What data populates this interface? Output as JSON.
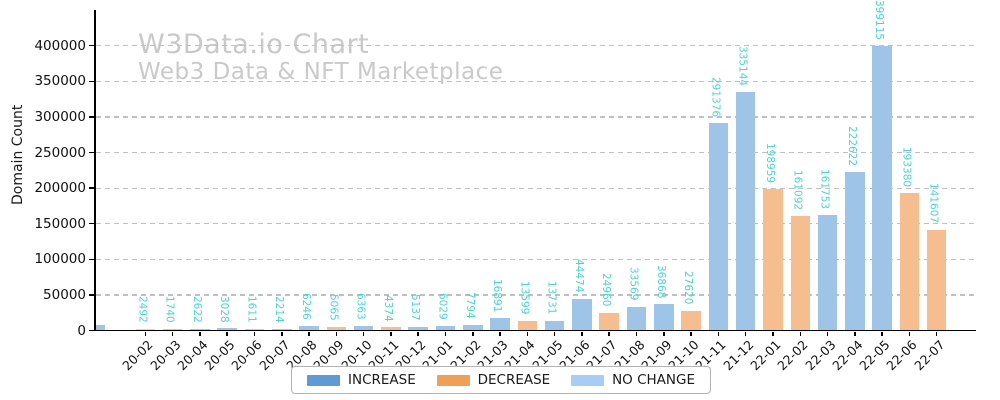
{
  "chart_data": {
    "type": "bar",
    "title": "W3Data.io Chart",
    "subtitle": "Web3 Data & NFT Marketplace",
    "xlabel": "",
    "ylabel": "Domain Count",
    "ylim": [
      0,
      430000
    ],
    "yticks": [
      0,
      50000,
      100000,
      150000,
      200000,
      250000,
      300000,
      350000,
      400000
    ],
    "grid": "horizontal-dashed",
    "legend_position": "bottom-center",
    "value_label_rotation": "vertical",
    "bars": [
      {
        "month": "20-02",
        "value": 2492,
        "status": "no_change"
      },
      {
        "month": "20-03",
        "value": 1740,
        "status": "decrease"
      },
      {
        "month": "20-04",
        "value": 2622,
        "status": "increase"
      },
      {
        "month": "20-05",
        "value": 3028,
        "status": "increase"
      },
      {
        "month": "20-06",
        "value": 1611,
        "status": "decrease"
      },
      {
        "month": "20-07",
        "value": 2214,
        "status": "increase"
      },
      {
        "month": "20-08",
        "value": 6246,
        "status": "increase"
      },
      {
        "month": "20-09",
        "value": 5065,
        "status": "decrease"
      },
      {
        "month": "20-10",
        "value": 6363,
        "status": "increase"
      },
      {
        "month": "20-11",
        "value": 4374,
        "status": "decrease"
      },
      {
        "month": "20-12",
        "value": 5137,
        "status": "increase"
      },
      {
        "month": "21-01",
        "value": 6029,
        "status": "increase"
      },
      {
        "month": "21-02",
        "value": 7794,
        "status": "increase"
      },
      {
        "month": "21-03",
        "value": 16891,
        "status": "increase"
      },
      {
        "month": "21-04",
        "value": 13599,
        "status": "decrease"
      },
      {
        "month": "21-05",
        "value": 13731,
        "status": "increase"
      },
      {
        "month": "21-06",
        "value": 44474,
        "status": "increase"
      },
      {
        "month": "21-07",
        "value": 24960,
        "status": "decrease"
      },
      {
        "month": "21-08",
        "value": 33569,
        "status": "increase"
      },
      {
        "month": "21-09",
        "value": 36868,
        "status": "increase"
      },
      {
        "month": "21-10",
        "value": 27620,
        "status": "decrease"
      },
      {
        "month": "21-11",
        "value": 291376,
        "status": "increase"
      },
      {
        "month": "21-12",
        "value": 335144,
        "status": "increase"
      },
      {
        "month": "22-01",
        "value": 198959,
        "status": "decrease"
      },
      {
        "month": "22-02",
        "value": 161092,
        "status": "decrease"
      },
      {
        "month": "22-03",
        "value": 161753,
        "status": "increase"
      },
      {
        "month": "22-04",
        "value": 222622,
        "status": "increase"
      },
      {
        "month": "22-05",
        "value": 399115,
        "status": "increase"
      },
      {
        "month": "22-06",
        "value": 193380,
        "status": "decrease"
      },
      {
        "month": "22-07",
        "value": 141607,
        "status": "decrease"
      }
    ],
    "clipped_edge_bar": {
      "status": "increase",
      "approx_value": 7500,
      "note": "unlabeled bar partially visible at left axis edge"
    }
  },
  "legend": {
    "items": [
      {
        "key": "increase",
        "label": "INCREASE",
        "color": "#5E9AD3"
      },
      {
        "key": "decrease",
        "label": "DECREASE",
        "color": "#F0A055"
      },
      {
        "key": "no_change",
        "label": "NO CHANGE",
        "color": "#A6CEF5"
      }
    ]
  },
  "colors": {
    "bar_fill": {
      "increase": "#9EC4E8",
      "decrease": "#F6BE8E",
      "no_change": "#BBDDF6"
    },
    "value_label": "#48D6CF",
    "watermark": "#C9C9C9",
    "grid": "#BFBFBF",
    "axis": "#000000",
    "tick_text": "#111111"
  }
}
